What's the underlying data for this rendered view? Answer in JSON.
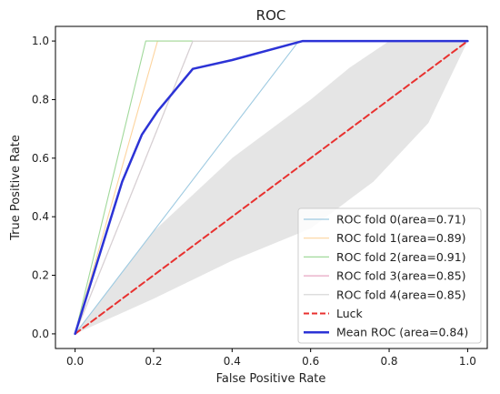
{
  "chart_data": {
    "type": "line",
    "title": "ROC",
    "xlabel": "False Positive Rate",
    "ylabel": "True Positive Rate",
    "xlim": [
      -0.05,
      1.05
    ],
    "ylim": [
      -0.05,
      1.05
    ],
    "xticks": [
      0.0,
      0.2,
      0.4,
      0.6,
      0.8,
      1.0
    ],
    "yticks": [
      0.0,
      0.2,
      0.4,
      0.6,
      0.8,
      1.0
    ],
    "xtick_labels": [
      "0.0",
      "0.2",
      "0.4",
      "0.6",
      "0.8",
      "1.0"
    ],
    "ytick_labels": [
      "0.0",
      "0.2",
      "0.4",
      "0.6",
      "0.8",
      "1.0"
    ],
    "grid": false,
    "legend_position": "lower-right",
    "band": {
      "color": "#bdbdbd",
      "upper": [
        [
          0.0,
          0.0
        ],
        [
          0.2,
          0.35
        ],
        [
          0.4,
          0.6
        ],
        [
          0.6,
          0.8
        ],
        [
          0.7,
          0.91
        ],
        [
          0.8,
          1.0
        ],
        [
          1.0,
          1.0
        ]
      ],
      "lower": [
        [
          0.0,
          0.0
        ],
        [
          0.2,
          0.12
        ],
        [
          0.4,
          0.25
        ],
        [
          0.6,
          0.36
        ],
        [
          0.76,
          0.52
        ],
        [
          0.9,
          0.72
        ],
        [
          1.0,
          1.0
        ]
      ]
    },
    "series": [
      {
        "name": "ROC fold 0(area=0.71)",
        "color": "#9ecae1",
        "x": [
          0.0,
          0.57,
          1.0
        ],
        "y": [
          0.0,
          1.0,
          1.0
        ]
      },
      {
        "name": "ROC fold 1(area=0.89)",
        "color": "#fdd49e",
        "x": [
          0.0,
          0.21,
          1.0
        ],
        "y": [
          0.0,
          1.0,
          1.0
        ]
      },
      {
        "name": "ROC fold 2(area=0.91)",
        "color": "#a1d99b",
        "x": [
          0.0,
          0.18,
          1.0
        ],
        "y": [
          0.0,
          1.0,
          1.0
        ]
      },
      {
        "name": "ROC fold 3(area=0.85)",
        "color": "#e7a6c3",
        "x": [
          0.0,
          0.3,
          1.0
        ],
        "y": [
          0.0,
          1.0,
          1.0
        ]
      },
      {
        "name": "ROC fold 4(area=0.85)",
        "color": "#d4d4d4",
        "x": [
          0.0,
          0.3,
          1.0
        ],
        "y": [
          0.0,
          1.0,
          1.0
        ]
      },
      {
        "name": "Luck",
        "color": "#e8312f",
        "dashed": true,
        "x": [
          0.0,
          1.0
        ],
        "y": [
          0.0,
          1.0
        ]
      },
      {
        "name": "Mean ROC (area=0.84)",
        "color": "#2c33d6",
        "bold": true,
        "x": [
          0.0,
          0.12,
          0.17,
          0.21,
          0.3,
          0.4,
          0.58,
          1.0
        ],
        "y": [
          0.0,
          0.52,
          0.68,
          0.76,
          0.905,
          0.935,
          1.0,
          1.0
        ]
      }
    ]
  }
}
